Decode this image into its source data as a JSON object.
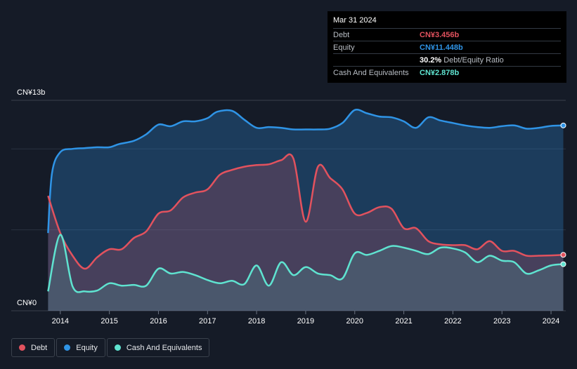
{
  "tooltip": {
    "date": "Mar 31 2024",
    "rows": [
      {
        "label": "Debt",
        "value": "CN¥3.456b",
        "color": "#e2525e"
      },
      {
        "label": "Equity",
        "value": "CN¥11.448b",
        "color": "#2f94e6"
      },
      {
        "label": "",
        "value": "30.2%",
        "suffix": "Debt/Equity Ratio",
        "color": "#ffffff"
      },
      {
        "label": "Cash And Equivalents",
        "value": "CN¥2.878b",
        "color": "#5fe3d0"
      }
    ]
  },
  "legend": [
    {
      "label": "Debt",
      "color": "#e2525e"
    },
    {
      "label": "Equity",
      "color": "#2f94e6"
    },
    {
      "label": "Cash And Equivalents",
      "color": "#5fe3d0"
    }
  ],
  "chart_data": {
    "type": "area",
    "y_top_label": "CN¥13b",
    "y_bottom_label": "CN¥0",
    "ylim": [
      0,
      13
    ],
    "xlim": [
      2013.0,
      2024.3
    ],
    "x_ticks": [
      "2014",
      "2015",
      "2016",
      "2017",
      "2018",
      "2019",
      "2020",
      "2021",
      "2022",
      "2023",
      "2024"
    ],
    "grid": true,
    "legend_position": "bottom-left",
    "series": [
      {
        "name": "Equity",
        "color": "#2f94e6",
        "points": [
          [
            2013.75,
            4.8
          ],
          [
            2013.83,
            8.5
          ],
          [
            2014.0,
            9.8
          ],
          [
            2014.25,
            10.0
          ],
          [
            2014.5,
            10.05
          ],
          [
            2014.75,
            10.1
          ],
          [
            2015.0,
            10.1
          ],
          [
            2015.2,
            10.3
          ],
          [
            2015.5,
            10.5
          ],
          [
            2015.75,
            10.9
          ],
          [
            2016.0,
            11.5
          ],
          [
            2016.25,
            11.4
          ],
          [
            2016.5,
            11.7
          ],
          [
            2016.75,
            11.7
          ],
          [
            2017.0,
            11.9
          ],
          [
            2017.2,
            12.3
          ],
          [
            2017.5,
            12.35
          ],
          [
            2017.75,
            11.8
          ],
          [
            2018.0,
            11.3
          ],
          [
            2018.25,
            11.35
          ],
          [
            2018.5,
            11.3
          ],
          [
            2018.75,
            11.2
          ],
          [
            2019.0,
            11.2
          ],
          [
            2019.25,
            11.2
          ],
          [
            2019.5,
            11.25
          ],
          [
            2019.75,
            11.6
          ],
          [
            2020.0,
            12.4
          ],
          [
            2020.25,
            12.2
          ],
          [
            2020.5,
            12.0
          ],
          [
            2020.75,
            11.95
          ],
          [
            2021.0,
            11.7
          ],
          [
            2021.25,
            11.3
          ],
          [
            2021.5,
            11.95
          ],
          [
            2021.75,
            11.75
          ],
          [
            2022.0,
            11.6
          ],
          [
            2022.25,
            11.45
          ],
          [
            2022.5,
            11.35
          ],
          [
            2022.75,
            11.3
          ],
          [
            2023.0,
            11.4
          ],
          [
            2023.25,
            11.45
          ],
          [
            2023.5,
            11.25
          ],
          [
            2023.75,
            11.3
          ],
          [
            2024.0,
            11.42
          ],
          [
            2024.25,
            11.448
          ]
        ]
      },
      {
        "name": "Debt",
        "color": "#e2525e",
        "points": [
          [
            2013.75,
            7.1
          ],
          [
            2014.0,
            4.8
          ],
          [
            2014.25,
            3.4
          ],
          [
            2014.5,
            2.6
          ],
          [
            2014.75,
            3.3
          ],
          [
            2015.0,
            3.8
          ],
          [
            2015.25,
            3.8
          ],
          [
            2015.5,
            4.5
          ],
          [
            2015.75,
            4.9
          ],
          [
            2016.0,
            6.0
          ],
          [
            2016.25,
            6.2
          ],
          [
            2016.5,
            7.0
          ],
          [
            2016.75,
            7.3
          ],
          [
            2017.0,
            7.5
          ],
          [
            2017.25,
            8.4
          ],
          [
            2017.5,
            8.7
          ],
          [
            2017.75,
            8.9
          ],
          [
            2018.0,
            9.0
          ],
          [
            2018.25,
            9.05
          ],
          [
            2018.5,
            9.3
          ],
          [
            2018.75,
            9.4
          ],
          [
            2019.0,
            5.5
          ],
          [
            2019.25,
            8.9
          ],
          [
            2019.5,
            8.2
          ],
          [
            2019.75,
            7.5
          ],
          [
            2020.0,
            6.0
          ],
          [
            2020.25,
            6.05
          ],
          [
            2020.5,
            6.4
          ],
          [
            2020.75,
            6.3
          ],
          [
            2021.0,
            5.1
          ],
          [
            2021.25,
            5.1
          ],
          [
            2021.5,
            4.3
          ],
          [
            2021.75,
            4.1
          ],
          [
            2022.0,
            4.05
          ],
          [
            2022.25,
            4.05
          ],
          [
            2022.5,
            3.8
          ],
          [
            2022.75,
            4.3
          ],
          [
            2023.0,
            3.7
          ],
          [
            2023.25,
            3.7
          ],
          [
            2023.5,
            3.4
          ],
          [
            2023.75,
            3.4
          ],
          [
            2024.0,
            3.42
          ],
          [
            2024.25,
            3.456
          ]
        ]
      },
      {
        "name": "Cash And Equivalents",
        "color": "#5fe3d0",
        "points": [
          [
            2013.75,
            1.2
          ],
          [
            2014.0,
            4.7
          ],
          [
            2014.25,
            1.5
          ],
          [
            2014.5,
            1.2
          ],
          [
            2014.75,
            1.25
          ],
          [
            2015.0,
            1.7
          ],
          [
            2015.25,
            1.55
          ],
          [
            2015.5,
            1.6
          ],
          [
            2015.75,
            1.55
          ],
          [
            2016.0,
            2.6
          ],
          [
            2016.25,
            2.3
          ],
          [
            2016.5,
            2.4
          ],
          [
            2016.75,
            2.2
          ],
          [
            2017.0,
            1.9
          ],
          [
            2017.25,
            1.7
          ],
          [
            2017.5,
            1.85
          ],
          [
            2017.75,
            1.65
          ],
          [
            2018.0,
            2.8
          ],
          [
            2018.25,
            1.55
          ],
          [
            2018.5,
            3.0
          ],
          [
            2018.75,
            2.2
          ],
          [
            2019.0,
            2.7
          ],
          [
            2019.25,
            2.3
          ],
          [
            2019.5,
            2.2
          ],
          [
            2019.75,
            2.0
          ],
          [
            2020.0,
            3.55
          ],
          [
            2020.25,
            3.45
          ],
          [
            2020.5,
            3.7
          ],
          [
            2020.75,
            4.0
          ],
          [
            2021.0,
            3.9
          ],
          [
            2021.25,
            3.7
          ],
          [
            2021.5,
            3.5
          ],
          [
            2021.75,
            3.9
          ],
          [
            2022.0,
            3.85
          ],
          [
            2022.25,
            3.6
          ],
          [
            2022.5,
            3.0
          ],
          [
            2022.75,
            3.4
          ],
          [
            2023.0,
            3.1
          ],
          [
            2023.25,
            3.0
          ],
          [
            2023.5,
            2.3
          ],
          [
            2023.75,
            2.5
          ],
          [
            2024.0,
            2.8
          ],
          [
            2024.25,
            2.878
          ]
        ]
      }
    ]
  }
}
